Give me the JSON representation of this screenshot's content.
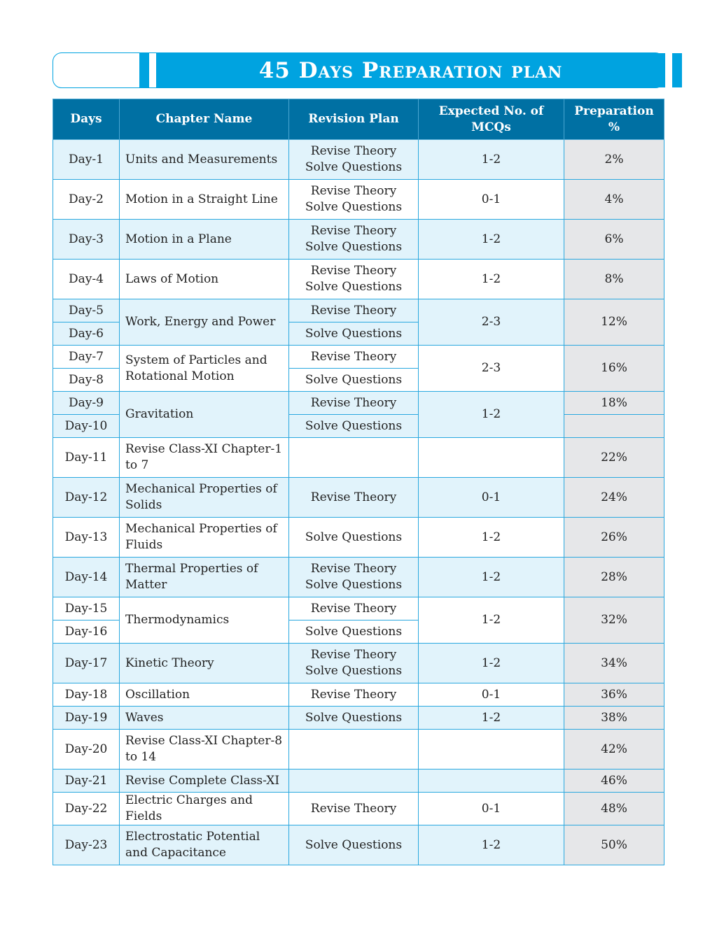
{
  "title": "45 Days Preparation plan",
  "colors": {
    "accent": "#00a3e0",
    "header_bg": "#0070a3",
    "row_shade": "#e1f3fb",
    "pct_bg": "#e6e7e9",
    "border": "#2aa8df"
  },
  "headers": {
    "days": "Days",
    "chapter": "Chapter Name",
    "revision": "Revision Plan",
    "mcqs": "Expected No. of MCQs",
    "prep": "Preparation %"
  },
  "rows": [
    {
      "day": "Day-1",
      "chapter": "Units and Measurements",
      "plan": [
        "Revise Theory",
        "Solve Questions"
      ],
      "mcq": "1-2",
      "pct": "2%"
    },
    {
      "day": "Day-2",
      "chapter": "Motion in a Straight Line",
      "plan": [
        "Revise Theory",
        "Solve Questions"
      ],
      "mcq": "0-1",
      "pct": "4%"
    },
    {
      "day": "Day-3",
      "chapter": "Motion in a Plane",
      "plan": [
        "Revise Theory",
        "Solve Questions"
      ],
      "mcq": "1-2",
      "pct": "6%"
    },
    {
      "day": "Day-4",
      "chapter": "Laws of Motion",
      "plan": [
        "Revise Theory",
        "Solve Questions"
      ],
      "mcq": "1-2",
      "pct": "8%"
    },
    {
      "days": [
        "Day-5",
        "Day-6"
      ],
      "chapter": "Work, Energy and Power",
      "plan": [
        "Revise Theory",
        "Solve Questions"
      ],
      "mcq": "2-3",
      "pct": "12%"
    },
    {
      "days": [
        "Day-7",
        "Day-8"
      ],
      "chapter": "System of Particles and Rotational Motion",
      "plan": [
        "Revise Theory",
        "Solve Questions"
      ],
      "mcq": "2-3",
      "pct": "16%"
    },
    {
      "days": [
        "Day-9",
        "Day-10"
      ],
      "chapter": "Gravitation",
      "plan": [
        "Revise Theory",
        "Solve Questions"
      ],
      "mcq": "1-2",
      "pct": [
        "18%",
        ""
      ]
    },
    {
      "day": "Day-11",
      "chapter": "Revise Class-XI Chapter-1 to 7",
      "plan": [
        ""
      ],
      "mcq": "",
      "pct": "22%"
    },
    {
      "day": "Day-12",
      "chapter": "Mechanical Properties of Solids",
      "plan": [
        "Revise Theory"
      ],
      "mcq": "0-1",
      "pct": "24%"
    },
    {
      "day": "Day-13",
      "chapter": "Mechanical Properties of Fluids",
      "plan": [
        "Solve Questions"
      ],
      "mcq": "1-2",
      "pct": "26%"
    },
    {
      "day": "Day-14",
      "chapter": "Thermal Properties of Matter",
      "plan": [
        "Revise Theory",
        "Solve Questions"
      ],
      "mcq": "1-2",
      "pct": "28%"
    },
    {
      "days": [
        "Day-15",
        "Day-16"
      ],
      "chapter": "Thermodynamics",
      "plan": [
        "Revise Theory",
        "Solve Questions"
      ],
      "mcq": "1-2",
      "pct": "32%"
    },
    {
      "day": "Day-17",
      "chapter": "Kinetic Theory",
      "plan": [
        "Revise Theory",
        "Solve Questions"
      ],
      "mcq": "1-2",
      "pct": "34%"
    },
    {
      "day": "Day-18",
      "chapter": "Oscillation",
      "plan": [
        "Revise Theory"
      ],
      "mcq": "0-1",
      "pct": "36%"
    },
    {
      "day": "Day-19",
      "chapter": "Waves",
      "plan": [
        "Solve Questions"
      ],
      "mcq": "1-2",
      "pct": "38%"
    },
    {
      "day": "Day-20",
      "chapter": "Revise Class-XI Chapter-8 to 14",
      "plan": [
        ""
      ],
      "mcq": "",
      "pct": "42%"
    },
    {
      "day": "Day-21",
      "chapter": "Revise Complete Class-XI",
      "plan": [
        ""
      ],
      "mcq": "",
      "pct": "46%"
    },
    {
      "day": "Day-22",
      "chapter": "Electric Charges and Fields",
      "plan": [
        "Revise Theory"
      ],
      "mcq": "0-1",
      "pct": "48%"
    },
    {
      "day": "Day-23",
      "chapter": "Electrostatic Potential and Capacitance",
      "plan": [
        "Solve Questions"
      ],
      "mcq": "1-2",
      "pct": "50%"
    }
  ]
}
